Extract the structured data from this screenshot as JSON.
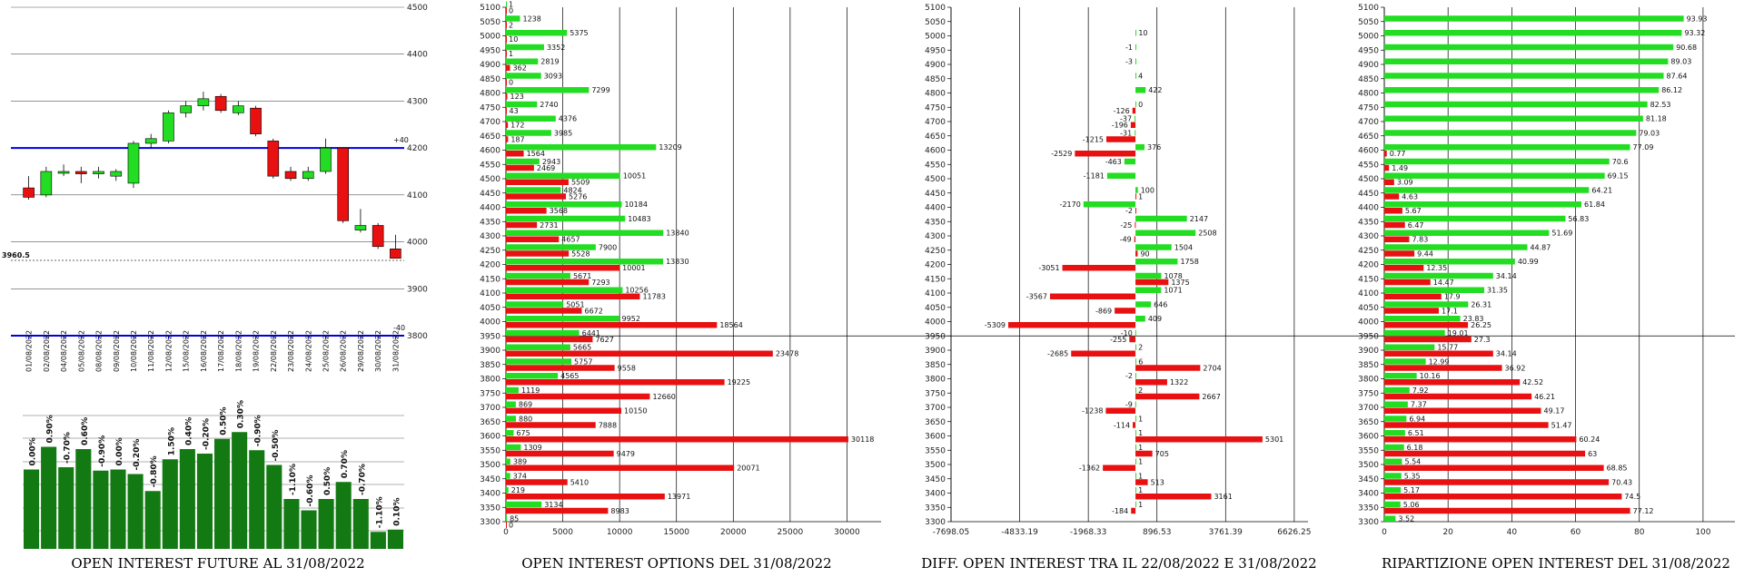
{
  "colors": {
    "green": "#22dd22",
    "red": "#e81010",
    "blue": "#0000dd",
    "dark_green": "#137a13",
    "grid": "#888888",
    "axis": "#000000"
  },
  "chart_data": [
    {
      "type": "candlestick",
      "title": "",
      "xlabel": "",
      "ylabel": "",
      "ylim": [
        3800,
        4500
      ],
      "yticks": [
        "4500",
        "4400",
        "4300",
        "4200",
        "4100",
        "4000",
        "3900",
        "3800"
      ],
      "dates": [
        "01/08/2022",
        "02/08/2022",
        "04/08/2022",
        "05/08/2022",
        "08/08/2022",
        "09/08/2022",
        "10/08/2022",
        "11/08/2022",
        "12/08/2022",
        "15/08/2022",
        "16/08/2022",
        "17/08/2022",
        "18/08/2022",
        "19/08/2022",
        "22/08/2022",
        "23/08/2022",
        "24/08/2022",
        "25/08/2022",
        "26/08/2022",
        "29/08/2022",
        "30/08/2022",
        "31/08/2022"
      ],
      "candles": [
        {
          "o": 4115,
          "h": 4140,
          "l": 4090,
          "c": 4095
        },
        {
          "o": 4100,
          "h": 4160,
          "l": 4095,
          "c": 4150
        },
        {
          "o": 4150,
          "h": 4165,
          "l": 4140,
          "c": 4150
        },
        {
          "o": 4150,
          "h": 4160,
          "l": 4125,
          "c": 4145
        },
        {
          "o": 4145,
          "h": 4160,
          "l": 4135,
          "c": 4150
        },
        {
          "o": 4140,
          "h": 4155,
          "l": 4130,
          "c": 4150
        },
        {
          "o": 4125,
          "h": 4215,
          "l": 4115,
          "c": 4210
        },
        {
          "o": 4210,
          "h": 4230,
          "l": 4200,
          "c": 4220
        },
        {
          "o": 4215,
          "h": 4280,
          "l": 4210,
          "c": 4275
        },
        {
          "o": 4275,
          "h": 4300,
          "l": 4265,
          "c": 4290
        },
        {
          "o": 4290,
          "h": 4320,
          "l": 4280,
          "c": 4305
        },
        {
          "o": 4310,
          "h": 4315,
          "l": 4275,
          "c": 4280
        },
        {
          "o": 4275,
          "h": 4300,
          "l": 4270,
          "c": 4290
        },
        {
          "o": 4285,
          "h": 4290,
          "l": 4225,
          "c": 4230
        },
        {
          "o": 4215,
          "h": 4220,
          "l": 4135,
          "c": 4140
        },
        {
          "o": 4150,
          "h": 4160,
          "l": 4130,
          "c": 4135
        },
        {
          "o": 4135,
          "h": 4160,
          "l": 4130,
          "c": 4150
        },
        {
          "o": 4150,
          "h": 4220,
          "l": 4145,
          "c": 4200
        },
        {
          "o": 4200,
          "h": 4200,
          "l": 4040,
          "c": 4045
        },
        {
          "o": 4025,
          "h": 4070,
          "l": 4020,
          "c": 4035
        },
        {
          "o": 4035,
          "h": 4040,
          "l": 3985,
          "c": 3990
        },
        {
          "o": 3985,
          "h": 4015,
          "l": 3965,
          "c": 3965
        }
      ],
      "lines": {
        "upper": 4200,
        "lower": 3800,
        "last": 3960.5
      },
      "upper_label": "+40",
      "lower_label": "-40",
      "last_label": "3960.5"
    },
    {
      "type": "bar",
      "title": "OPEN INTEREST FUTURE AL 31/08/2022",
      "values": [
        70,
        90,
        72,
        88,
        69,
        70,
        66,
        51,
        79,
        88,
        84,
        97,
        103,
        87,
        74,
        44,
        34,
        44,
        59,
        44,
        15,
        17
      ],
      "labels": [
        "0.00%",
        "0.90%",
        "-0.70%",
        "0.60%",
        "-0.90%",
        "0.00%",
        "-0.20%",
        "-0.80%",
        "1.50%",
        "0.40%",
        "-0.20%",
        "0.50%",
        "0.30%",
        "-0.90%",
        "-0.50%",
        "-1.10%",
        "-0.60%",
        "0.50%",
        "0.70%",
        "-0.70%",
        "-1.10%",
        "0.10%"
      ],
      "ylim": [
        0,
        120
      ]
    },
    {
      "type": "bar",
      "orientation": "horizontal",
      "title": "OPEN INTEREST OPTIONS DEL 31/08/2022",
      "strikes": [
        "5100",
        "5050",
        "5000",
        "4950",
        "4900",
        "4850",
        "4800",
        "4750",
        "4700",
        "4650",
        "4600",
        "4550",
        "4500",
        "4450",
        "4400",
        "4350",
        "4300",
        "4250",
        "4200",
        "4150",
        "4100",
        "4050",
        "4000",
        "3950",
        "3900",
        "3850",
        "3800",
        "3750",
        "3700",
        "3650",
        "3600",
        "3550",
        "3500",
        "3450",
        "3400",
        "3350",
        "3300"
      ],
      "series": [
        {
          "name": "call",
          "color": "green",
          "values": [
            1,
            1238,
            5375,
            3352,
            2819,
            3093,
            7299,
            2740,
            4376,
            3985,
            13209,
            2943,
            10051,
            4824,
            10184,
            10483,
            13840,
            7900,
            13830,
            5671,
            10256,
            5051,
            9952,
            6441,
            5665,
            5757,
            4565,
            1119,
            869,
            880,
            675,
            1309,
            389,
            374,
            219,
            3134,
            85
          ]
        },
        {
          "name": "put",
          "color": "red",
          "values": [
            0,
            2,
            10,
            1,
            362,
            0,
            123,
            43,
            172,
            187,
            1564,
            2469,
            5509,
            5276,
            3568,
            2731,
            4657,
            5528,
            10001,
            7293,
            11783,
            6672,
            18564,
            7627,
            23478,
            9558,
            19225,
            12660,
            10150,
            7888,
            30118,
            9479,
            20071,
            5410,
            13971,
            8983,
            0
          ]
        }
      ],
      "xticks": [
        "0",
        "5000",
        "10000",
        "15000",
        "20000",
        "25000",
        "30000"
      ],
      "xlim": [
        0,
        33000
      ]
    },
    {
      "type": "bar",
      "orientation": "horizontal",
      "title": "DIFF. OPEN INTEREST TRA IL 22/08/2022 E 31/08/2022",
      "strikes": [
        "5100",
        "5050",
        "5000",
        "4950",
        "4900",
        "4850",
        "4800",
        "4750",
        "4700",
        "4650",
        "4600",
        "4550",
        "4500",
        "4450",
        "4400",
        "4350",
        "4300",
        "4250",
        "4200",
        "4150",
        "4100",
        "4050",
        "4000",
        "3950",
        "3900",
        "3850",
        "3800",
        "3750",
        "3700",
        "3650",
        "3600",
        "3550",
        "3500",
        "3450",
        "3400",
        "3350",
        "3300"
      ],
      "series": [
        {
          "name": "call",
          "color": "green",
          "values": [
            null,
            null,
            10,
            -1,
            -3,
            4,
            422,
            0,
            -37,
            -31,
            376,
            -463,
            -1181,
            100,
            -2170,
            2147,
            2508,
            1504,
            1758,
            1078,
            1071,
            646,
            409,
            -10,
            2,
            6,
            -2,
            2,
            -9,
            1,
            1,
            1,
            1,
            1,
            1,
            1,
            null
          ]
        },
        {
          "name": "put",
          "color": "red",
          "values": [
            null,
            null,
            null,
            null,
            null,
            null,
            null,
            -126,
            -196,
            -1215,
            -2529,
            null,
            null,
            1,
            -2,
            -25,
            -49,
            90,
            -3051,
            1375,
            -3567,
            -869,
            -5309,
            -255,
            -2685,
            2704,
            1322,
            2667,
            -1238,
            -114,
            5301,
            705,
            -1362,
            513,
            3161,
            -184,
            null
          ]
        }
      ],
      "xticks": [
        "-7698.05",
        "-4833.19",
        "-1968.33",
        "896.53",
        "3761.39",
        "6626.25"
      ],
      "xlim": [
        -7698.05,
        7200
      ]
    },
    {
      "type": "bar",
      "orientation": "horizontal",
      "title": "RIPARTIZIONE OPEN INTEREST DEL 31/08/2022",
      "strikes": [
        "5100",
        "5050",
        "5000",
        "4950",
        "4900",
        "4850",
        "4800",
        "4750",
        "4700",
        "4650",
        "4600",
        "4550",
        "4500",
        "4450",
        "4400",
        "4350",
        "4300",
        "4250",
        "4200",
        "4150",
        "4100",
        "4050",
        "4000",
        "3950",
        "3900",
        "3850",
        "3800",
        "3750",
        "3700",
        "3650",
        "3600",
        "3550",
        "3500",
        "3450",
        "3400",
        "3350",
        "3300"
      ],
      "series": [
        {
          "name": "call",
          "color": "green",
          "values": [
            null,
            93.93,
            93.32,
            90.68,
            89.03,
            87.64,
            86.12,
            82.53,
            81.18,
            79.03,
            77.09,
            70.6,
            69.15,
            64.21,
            61.84,
            56.83,
            51.69,
            44.87,
            40.99,
            34.14,
            31.35,
            26.31,
            23.83,
            19.01,
            15.77,
            12.99,
            10.16,
            7.92,
            7.37,
            6.94,
            6.51,
            6.18,
            5.54,
            5.35,
            5.17,
            5.06,
            3.52
          ]
        },
        {
          "name": "put",
          "color": "red",
          "values": [
            null,
            null,
            null,
            null,
            null,
            null,
            null,
            null,
            null,
            null,
            0.77,
            1.49,
            3.09,
            4.63,
            5.67,
            6.47,
            7.83,
            9.44,
            12.35,
            14.47,
            17.9,
            17.1,
            26.25,
            27.3,
            34.14,
            36.92,
            42.52,
            46.21,
            49.17,
            51.47,
            60.24,
            63,
            68.85,
            70.43,
            74.5,
            77.12,
            null
          ]
        }
      ],
      "xticks": [
        "0",
        "20",
        "40",
        "60",
        "80",
        "100"
      ],
      "xlim": [
        0,
        110
      ]
    }
  ]
}
